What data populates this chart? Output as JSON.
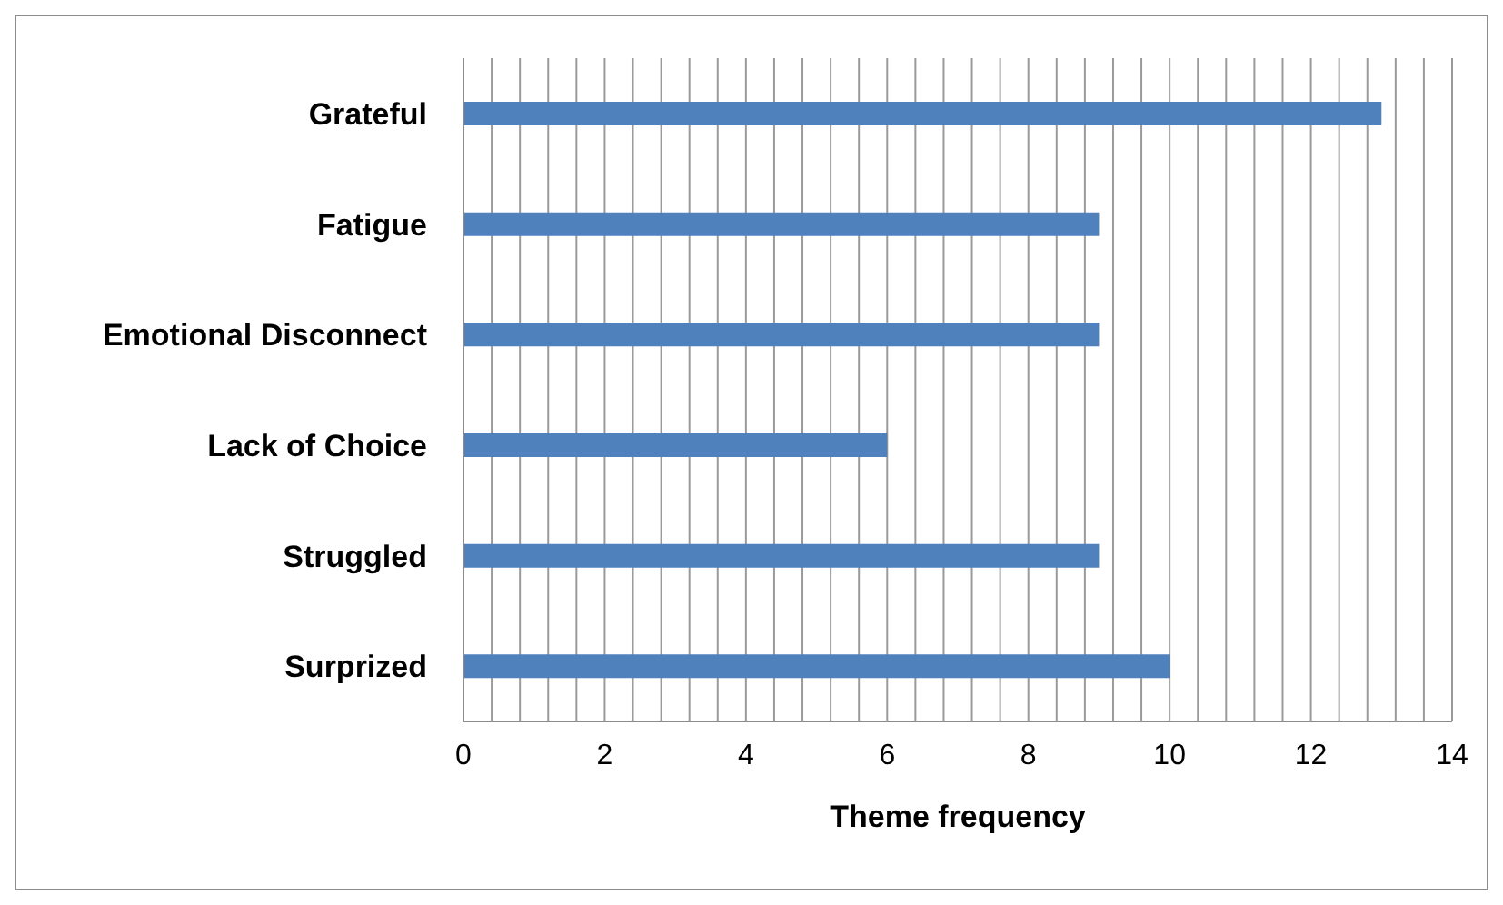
{
  "chart_data": {
    "type": "bar",
    "orientation": "horizontal",
    "xlabel": "Theme frequency",
    "categories": [
      "Grateful",
      "Fatigue",
      "Emotional Disconnect",
      "Lack of Choice",
      "Struggled",
      "Surprized"
    ],
    "values": [
      13,
      9,
      9,
      6,
      9,
      10
    ],
    "color": "#4f81bd",
    "xlim": [
      0,
      14
    ],
    "xticks": [
      0,
      {
        "value": 0.4,
        "label": null
      },
      {
        "value": 0.8,
        "label": null
      },
      {
        "value": 1.2,
        "label": null
      },
      {
        "value": 1.6,
        "label": null
      },
      2,
      {
        "value": 2.4,
        "label": null
      },
      {
        "value": 2.8,
        "label": null
      },
      {
        "value": 3.2,
        "label": null
      },
      {
        "value": 3.6,
        "label": null
      },
      4,
      {
        "value": 4.4,
        "label": null
      },
      {
        "value": 4.8,
        "label": null
      },
      {
        "value": 5.2,
        "label": null
      },
      {
        "value": 5.6,
        "label": null
      },
      6,
      {
        "value": 6.4,
        "label": null
      },
      {
        "value": 6.8,
        "label": null
      },
      {
        "value": 7.2,
        "label": null
      },
      {
        "value": 7.6,
        "label": null
      },
      8,
      {
        "value": 8.4,
        "label": null
      },
      {
        "value": 8.8,
        "label": null
      },
      {
        "value": 9.2,
        "label": null
      },
      {
        "value": 9.6,
        "label": null
      },
      10,
      {
        "value": 10.4,
        "label": null
      },
      {
        "value": 10.8,
        "label": null
      },
      {
        "value": 11.2,
        "label": null
      },
      {
        "value": 11.6,
        "label": null
      },
      12,
      {
        "value": 12.4,
        "label": null
      },
      {
        "value": 12.8,
        "label": null
      },
      {
        "value": 13.2,
        "label": null
      },
      {
        "value": 13.6,
        "label": null
      },
      14
    ],
    "grid": "x"
  }
}
